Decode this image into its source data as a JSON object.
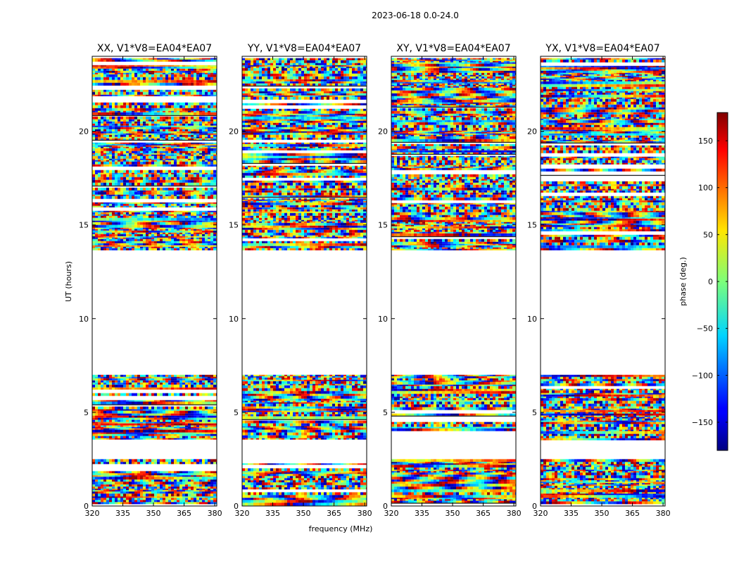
{
  "figure": {
    "title": "2023-06-18 0.0-24.0"
  },
  "chart_data": {
    "type": "heatmap",
    "xlabel": "frequency (MHz)",
    "ylabel": "UT (hours)",
    "xlim": [
      320,
      381
    ],
    "ylim": [
      0,
      24
    ],
    "xticks": [
      "320",
      "335",
      "350",
      "365",
      "380"
    ],
    "yticks": [
      "0",
      "5",
      "10",
      "15",
      "20"
    ],
    "panels": [
      {
        "title": "XX, V1*V8=EA04*EA07",
        "pol": "XX"
      },
      {
        "title": "YY, V1*V8=EA04*EA07",
        "pol": "YY"
      },
      {
        "title": "XY, V1*V8=EA04*EA07",
        "pol": "XY"
      },
      {
        "title": "YX, V1*V8=EA04*EA07",
        "pol": "YX"
      }
    ],
    "data_time_ranges_hours": [
      [
        0.1,
        2.5
      ],
      [
        3.6,
        7.0
      ],
      [
        13.7,
        23.9
      ]
    ],
    "colorbar": {
      "label": "phase (deg.)",
      "range": [
        -180,
        180
      ],
      "ticks": [
        "150",
        "100",
        "50",
        "0",
        "−50",
        "−100",
        "−150"
      ],
      "colormap": "jet"
    }
  },
  "colors": {
    "axes": "#000000",
    "background": "#ffffff"
  }
}
